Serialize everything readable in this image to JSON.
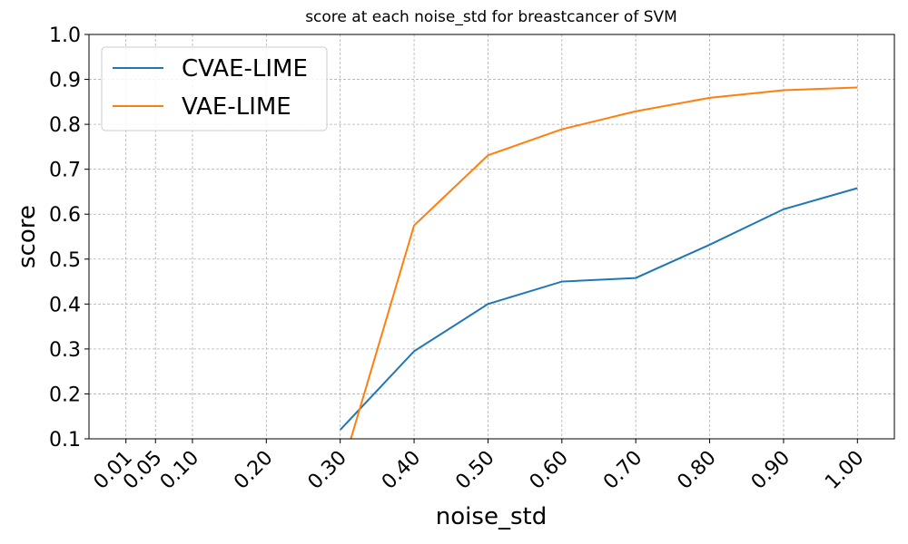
{
  "chart_data": {
    "type": "line",
    "title": "score at each noise_std for breastcancer of SVM",
    "x_label": "noise_std",
    "y_label": "score",
    "xlim": [
      -0.04,
      1.05
    ],
    "ylim": [
      0.1,
      1.0
    ],
    "xticks": [
      0.01,
      0.05,
      {
        "value": 0.1,
        "label": "0.10"
      },
      {
        "value": 0.2,
        "label": "0.20"
      },
      {
        "value": 0.3,
        "label": "0.30"
      },
      {
        "value": 0.4,
        "label": "0.40"
      },
      {
        "value": 0.5,
        "label": "0.50"
      },
      {
        "value": 0.6,
        "label": "0.60"
      },
      {
        "value": 0.7,
        "label": "0.70"
      },
      {
        "value": 0.8,
        "label": "0.80"
      },
      {
        "value": 0.9,
        "label": "0.90"
      },
      {
        "value": 1.0,
        "label": "1.00"
      }
    ],
    "yticks": [
      0.1,
      0.2,
      0.3,
      0.4,
      0.5,
      0.6,
      0.7,
      0.8,
      0.9,
      {
        "value": 1.0,
        "label": "1.0"
      }
    ],
    "grid": true,
    "legend": "upper left",
    "x": [
      0.3,
      0.4,
      0.5,
      0.6,
      0.7,
      0.8,
      0.9,
      1.0
    ],
    "series": [
      {
        "name": "CVAE-LIME",
        "color": "#1f77b4",
        "values": [
          0.12,
          0.295,
          0.4,
          0.45,
          0.458,
          0.532,
          0.611,
          0.658
        ]
      },
      {
        "name": "VAE-LIME",
        "color": "#ff7f0e",
        "values": [
          0.02,
          0.575,
          0.731,
          0.789,
          0.829,
          0.859,
          0.876,
          0.882
        ]
      }
    ]
  }
}
